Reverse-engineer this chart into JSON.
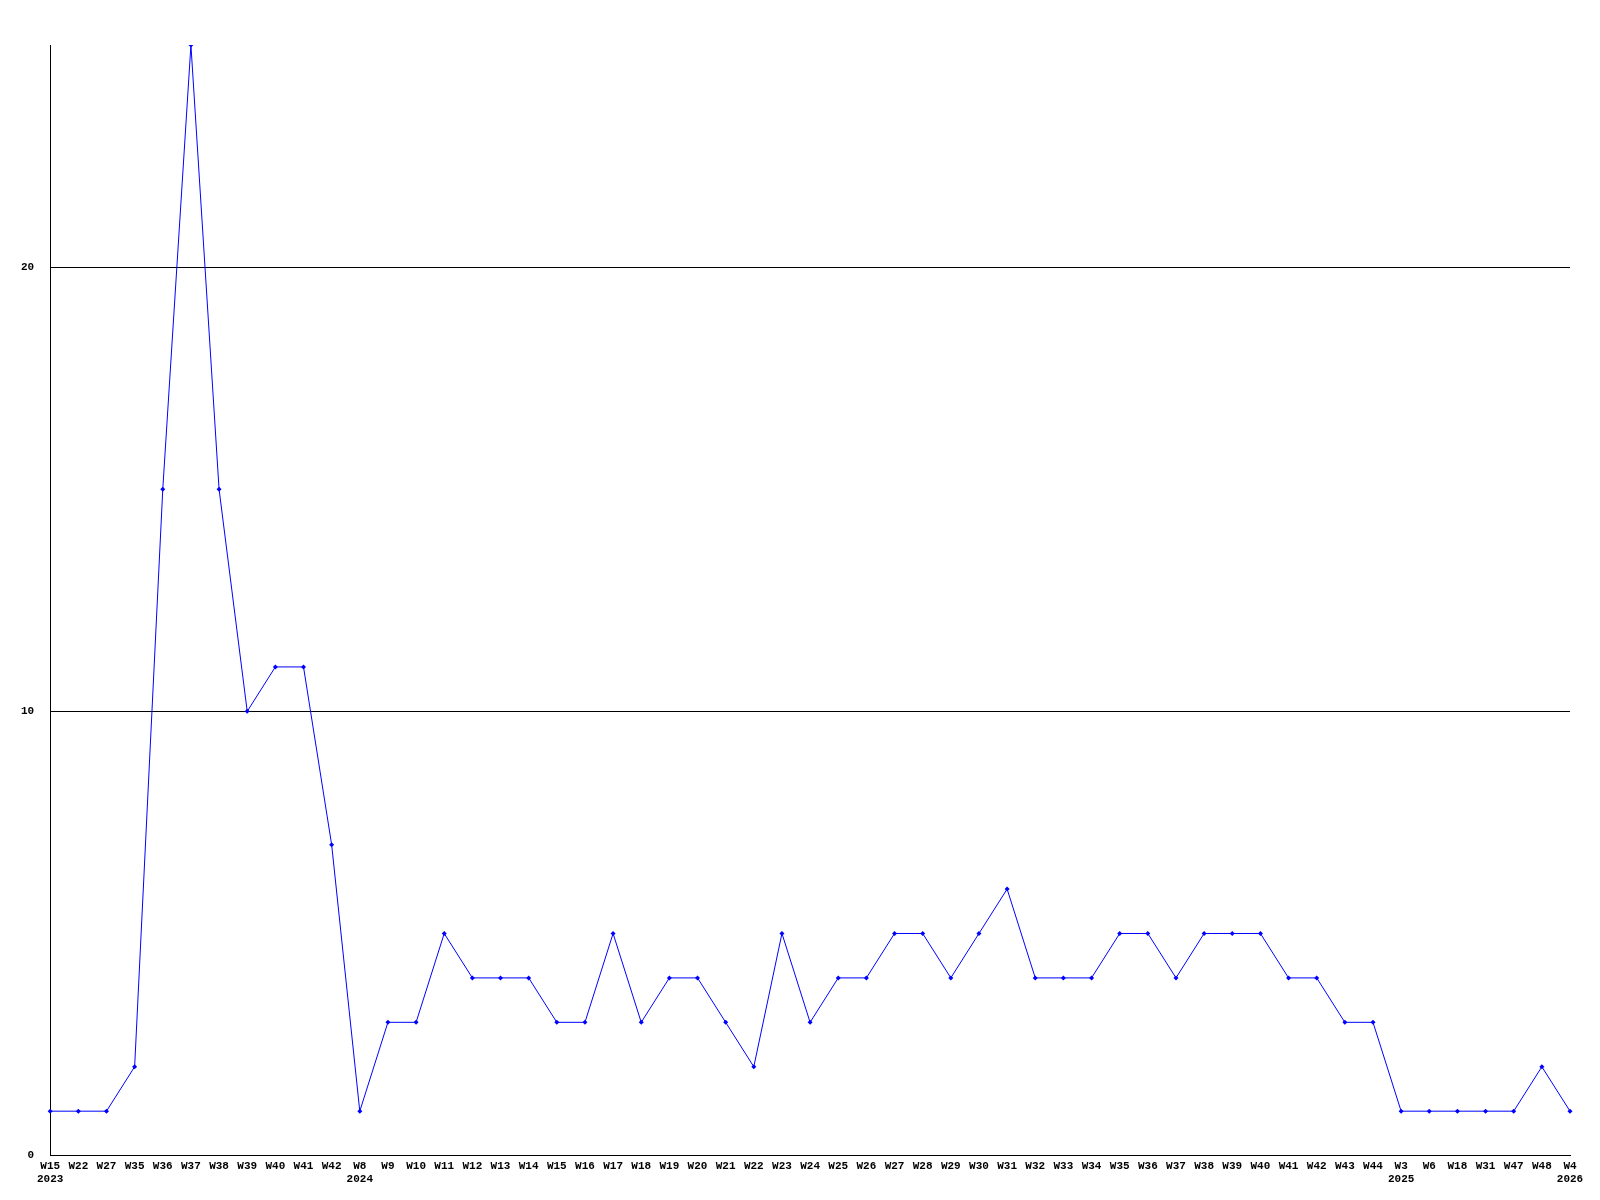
{
  "chart_data": {
    "type": "line",
    "categories": [
      "W15\n2023",
      "W22",
      "W27",
      "W35",
      "W36",
      "W37",
      "W38",
      "W39",
      "W40",
      "W41",
      "W42",
      "W8\n2024",
      "W9",
      "W10",
      "W11",
      "W12",
      "W13",
      "W14",
      "W15",
      "W16",
      "W17",
      "W18",
      "W19",
      "W20",
      "W21",
      "W22",
      "W23",
      "W24",
      "W25",
      "W26",
      "W27",
      "W28",
      "W29",
      "W30",
      "W31",
      "W32",
      "W33",
      "W34",
      "W35",
      "W36",
      "W37",
      "W38",
      "W39",
      "W40",
      "W41",
      "W42",
      "W43",
      "W44",
      "W3\n2025",
      "W6",
      "W18",
      "W31",
      "W47",
      "W48",
      "W4\n2026"
    ],
    "series": [
      {
        "color": "#0000ff",
        "values": [
          1,
          1,
          1,
          2,
          15,
          25,
          15,
          10,
          11,
          11,
          7,
          1,
          3,
          3,
          5,
          4,
          4,
          4,
          3,
          3,
          5,
          3,
          4,
          4,
          3,
          2,
          5,
          3,
          4,
          4,
          5,
          5,
          4,
          5,
          6,
          4,
          4,
          4,
          5,
          5,
          4,
          5,
          5,
          5,
          4,
          4,
          3,
          3,
          1,
          1,
          1,
          1,
          1,
          2,
          1
        ]
      }
    ],
    "ylim": [
      0,
      25
    ],
    "yticks": [
      0,
      10,
      20
    ],
    "grid": "y",
    "marker": "diamond",
    "line_style": "solid",
    "legend": false
  }
}
